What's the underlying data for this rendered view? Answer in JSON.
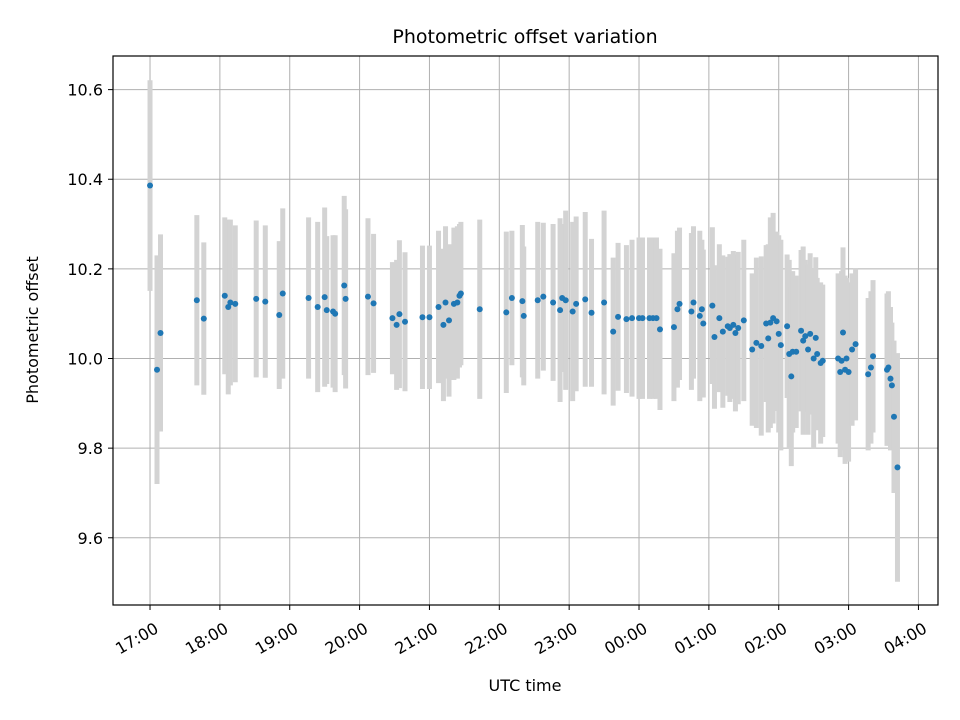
{
  "chart_data": {
    "type": "scatter",
    "title": "Photometric offset variation",
    "xlabel": "UTC time",
    "ylabel": "Photometric offset",
    "x_tick_labels": [
      "17:00",
      "18:00",
      "19:00",
      "20:00",
      "21:00",
      "22:00",
      "23:00",
      "00:00",
      "01:00",
      "02:00",
      "03:00",
      "04:00"
    ],
    "y_tick_labels": [
      "9.6",
      "9.8",
      "10.0",
      "10.2",
      "10.4",
      "10.6"
    ],
    "y_ticks": [
      9.6,
      9.8,
      10.0,
      10.2,
      10.4,
      10.6
    ],
    "ylim": [
      9.45,
      10.675
    ],
    "xlim_hours": [
      16.47,
      28.28
    ],
    "grid": true,
    "colors": {
      "point": "#1f77b4",
      "errorbar": "#d3d3d3",
      "grid": "#b0b0b0"
    },
    "points": [
      [
        17.0,
        10.386,
        0.235
      ],
      [
        17.1,
        9.975,
        0.255
      ],
      [
        17.15,
        10.057,
        0.22
      ],
      [
        17.67,
        10.13,
        0.19
      ],
      [
        17.77,
        10.089,
        0.17
      ],
      [
        18.07,
        10.14,
        0.175
      ],
      [
        18.12,
        10.115,
        0.195
      ],
      [
        18.15,
        10.125,
        0.185
      ],
      [
        18.22,
        10.122,
        0.175
      ],
      [
        18.52,
        10.133,
        0.175
      ],
      [
        18.65,
        10.127,
        0.17
      ],
      [
        18.85,
        10.097,
        0.165
      ],
      [
        18.9,
        10.145,
        0.19
      ],
      [
        19.27,
        10.135,
        0.18
      ],
      [
        19.4,
        10.115,
        0.19
      ],
      [
        19.5,
        10.137,
        0.2
      ],
      [
        19.53,
        10.108,
        0.165
      ],
      [
        19.62,
        10.105,
        0.17
      ],
      [
        19.65,
        10.1,
        0.175
      ],
      [
        19.78,
        10.163,
        0.2
      ],
      [
        19.8,
        10.133,
        0.2
      ],
      [
        20.12,
        10.138,
        0.175
      ],
      [
        20.2,
        10.123,
        0.155
      ],
      [
        20.47,
        10.09,
        0.125
      ],
      [
        20.53,
        10.075,
        0.145
      ],
      [
        20.57,
        10.099,
        0.165
      ],
      [
        20.65,
        10.082,
        0.155
      ],
      [
        20.9,
        10.092,
        0.16
      ],
      [
        21.0,
        10.092,
        0.16
      ],
      [
        21.13,
        10.115,
        0.17
      ],
      [
        21.2,
        10.075,
        0.17
      ],
      [
        21.23,
        10.125,
        0.17
      ],
      [
        21.28,
        10.085,
        0.17
      ],
      [
        21.35,
        10.122,
        0.17
      ],
      [
        21.4,
        10.125,
        0.17
      ],
      [
        21.43,
        10.14,
        0.16
      ],
      [
        21.45,
        10.145,
        0.16
      ],
      [
        21.72,
        10.11,
        0.2
      ],
      [
        22.1,
        10.103,
        0.18
      ],
      [
        22.18,
        10.135,
        0.15
      ],
      [
        22.33,
        10.128,
        0.17
      ],
      [
        22.35,
        10.095,
        0.155
      ],
      [
        22.55,
        10.13,
        0.175
      ],
      [
        22.63,
        10.138,
        0.165
      ],
      [
        22.77,
        10.125,
        0.175
      ],
      [
        22.87,
        10.108,
        0.205
      ],
      [
        22.9,
        10.135,
        0.165
      ],
      [
        22.95,
        10.13,
        0.2
      ],
      [
        23.05,
        10.105,
        0.2
      ],
      [
        23.1,
        10.122,
        0.195
      ],
      [
        23.23,
        10.132,
        0.195
      ],
      [
        23.32,
        10.102,
        0.165
      ],
      [
        23.5,
        10.125,
        0.205
      ],
      [
        23.63,
        10.06,
        0.165
      ],
      [
        23.7,
        10.093,
        0.165
      ],
      [
        23.82,
        10.088,
        0.165
      ],
      [
        23.9,
        10.09,
        0.175
      ],
      [
        24.0,
        10.09,
        0.18
      ],
      [
        24.05,
        10.09,
        0.18
      ],
      [
        24.15,
        10.09,
        0.18
      ],
      [
        24.2,
        10.09,
        0.18
      ],
      [
        24.25,
        10.09,
        0.18
      ],
      [
        24.3,
        10.065,
        0.18
      ],
      [
        24.5,
        10.07,
        0.165
      ],
      [
        24.55,
        10.11,
        0.175
      ],
      [
        24.58,
        10.122,
        0.17
      ],
      [
        24.75,
        10.105,
        0.175
      ],
      [
        24.78,
        10.125,
        0.17
      ],
      [
        24.87,
        10.095,
        0.19
      ],
      [
        24.9,
        10.11,
        0.155
      ],
      [
        24.92,
        10.078,
        0.165
      ],
      [
        25.05,
        10.118,
        0.175
      ],
      [
        25.08,
        10.048,
        0.16
      ],
      [
        25.15,
        10.09,
        0.165
      ],
      [
        25.2,
        10.06,
        0.17
      ],
      [
        25.27,
        10.072,
        0.155
      ],
      [
        25.3,
        10.068,
        0.165
      ],
      [
        25.35,
        10.075,
        0.165
      ],
      [
        25.38,
        10.057,
        0.175
      ],
      [
        25.42,
        10.068,
        0.17
      ],
      [
        25.5,
        10.085,
        0.18
      ],
      [
        25.62,
        10.02,
        0.17
      ],
      [
        25.68,
        10.035,
        0.19
      ],
      [
        25.75,
        10.028,
        0.2
      ],
      [
        25.82,
        10.078,
        0.175
      ],
      [
        25.85,
        10.045,
        0.21
      ],
      [
        25.88,
        10.08,
        0.235
      ],
      [
        25.92,
        10.09,
        0.235
      ],
      [
        25.97,
        10.083,
        0.2
      ],
      [
        26.0,
        10.055,
        0.22
      ],
      [
        26.03,
        10.03,
        0.235
      ],
      [
        26.12,
        10.072,
        0.16
      ],
      [
        26.15,
        10.01,
        0.21
      ],
      [
        26.18,
        9.96,
        0.2
      ],
      [
        26.2,
        10.015,
        0.18
      ],
      [
        26.25,
        10.015,
        0.17
      ],
      [
        26.32,
        10.062,
        0.18
      ],
      [
        26.35,
        10.04,
        0.21
      ],
      [
        26.38,
        10.05,
        0.17
      ],
      [
        26.42,
        10.02,
        0.19
      ],
      [
        26.45,
        10.055,
        0.18
      ],
      [
        26.5,
        10.0,
        0.2
      ],
      [
        26.53,
        10.046,
        0.18
      ],
      [
        26.55,
        10.01,
        0.17
      ],
      [
        26.6,
        9.99,
        0.18
      ],
      [
        26.63,
        9.995,
        0.17
      ],
      [
        26.85,
        10.0,
        0.19
      ],
      [
        26.88,
        9.97,
        0.19
      ],
      [
        26.9,
        9.995,
        0.2
      ],
      [
        26.92,
        10.058,
        0.19
      ],
      [
        26.95,
        9.975,
        0.21
      ],
      [
        26.97,
        10.0,
        0.18
      ],
      [
        27.0,
        9.97,
        0.2
      ],
      [
        27.05,
        10.02,
        0.17
      ],
      [
        27.1,
        10.032,
        0.17
      ],
      [
        27.28,
        9.965,
        0.17
      ],
      [
        27.32,
        9.98,
        0.17
      ],
      [
        27.35,
        10.005,
        0.17
      ],
      [
        27.55,
        9.975,
        0.17
      ],
      [
        27.57,
        9.98,
        0.17
      ],
      [
        27.6,
        9.955,
        0.16
      ],
      [
        27.62,
        9.94,
        0.14
      ],
      [
        27.65,
        9.87,
        0.17
      ],
      [
        27.7,
        9.757,
        0.255
      ]
    ]
  }
}
